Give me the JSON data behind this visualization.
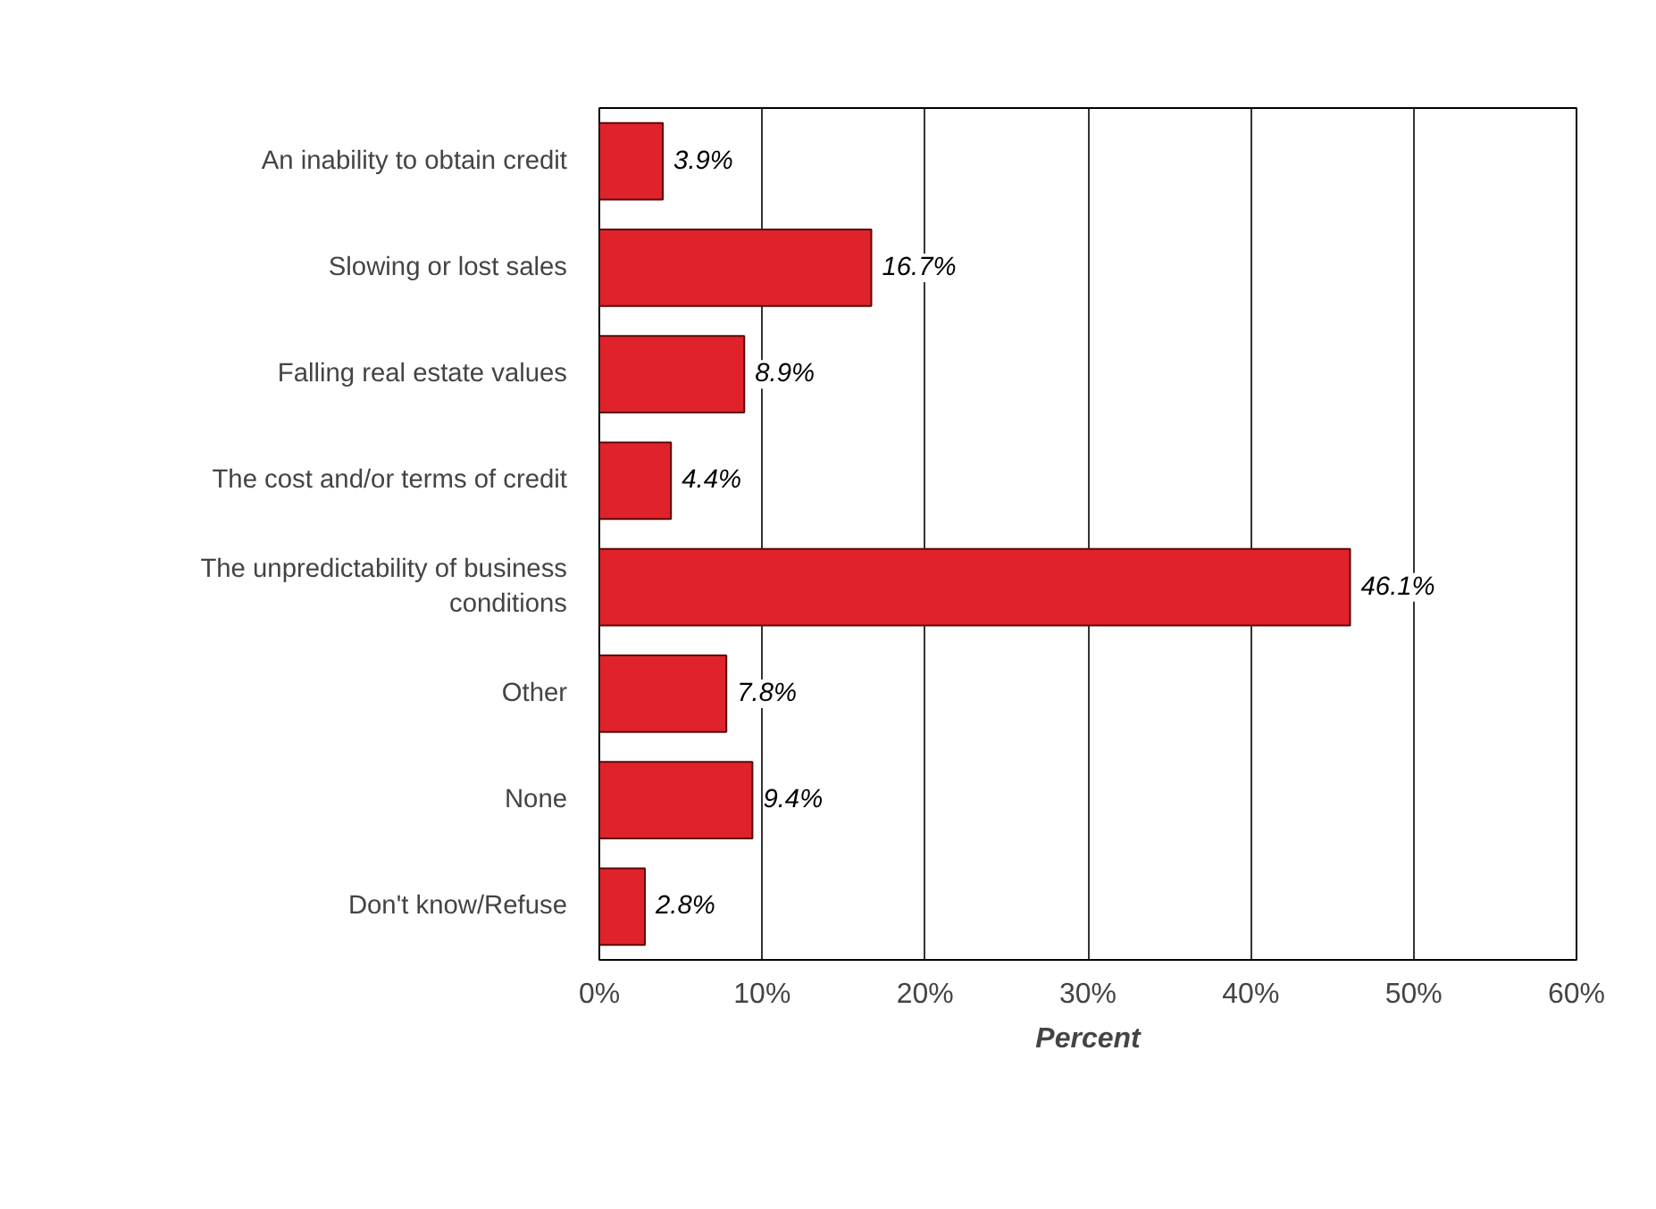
{
  "chart_data": {
    "type": "bar",
    "orientation": "horizontal",
    "xlabel": "Percent",
    "categories": [
      "An inability to obtain credit",
      "Slowing or lost sales",
      "Falling real estate values",
      "The cost and/or terms of credit",
      "The unpredictability of business conditions",
      "Other",
      "None",
      "Don't know/Refuse"
    ],
    "values": [
      3.9,
      16.7,
      8.9,
      4.4,
      46.1,
      7.8,
      9.4,
      2.8
    ],
    "value_labels": [
      "3.9%",
      "16.7%",
      "8.9%",
      "4.4%",
      "46.1%",
      "7.8%",
      "9.4%",
      "2.8%"
    ],
    "color": "#e0232b",
    "xlim": [
      0,
      60
    ],
    "xticks": [
      {
        "value": 0,
        "label": "0%"
      },
      {
        "value": 10,
        "label": "10%"
      },
      {
        "value": 20,
        "label": "20%"
      },
      {
        "value": 30,
        "label": "30%"
      },
      {
        "value": 40,
        "label": "40%"
      },
      {
        "value": 50,
        "label": "50%"
      },
      {
        "value": 60,
        "label": "60%"
      }
    ],
    "grid": "x"
  }
}
